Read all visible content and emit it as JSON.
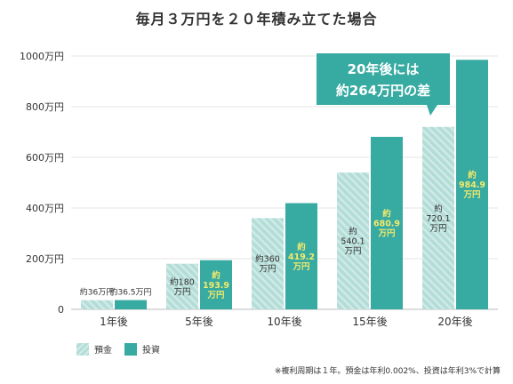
{
  "title": "毎月３万円を２０年積み立てた場合",
  "callout": {
    "line1": "20年後には",
    "line2": "約264万円の差"
  },
  "legend": {
    "savings": "預金",
    "investment": "投資"
  },
  "footnote": "※複利周期は１年。預金は年利0.002%、投資は年利3%で計算",
  "colors": {
    "savings": "#b3ddd7",
    "investment": "#37aaa2",
    "investment_label": "#f5ea6a",
    "text": "#333333",
    "grid": "#e6e6e6",
    "callout": "#37aaa2"
  },
  "chart_data": {
    "type": "bar",
    "categories": [
      "1年後",
      "5年後",
      "10年後",
      "15年後",
      "20年後"
    ],
    "ylim": [
      0,
      1000
    ],
    "yticks": [
      {
        "value": 0,
        "label": "0"
      },
      {
        "value": 200,
        "label": "200万円"
      },
      {
        "value": 400,
        "label": "400万円"
      },
      {
        "value": 600,
        "label": "600万円"
      },
      {
        "value": 800,
        "label": "800万円"
      },
      {
        "value": 1000,
        "label": "1000万円"
      }
    ],
    "series": [
      {
        "name": "預金",
        "values": [
          36,
          180,
          360,
          540.1,
          720.1
        ],
        "labels": [
          [
            "約36万円"
          ],
          [
            "約180",
            "万円"
          ],
          [
            "約360",
            "万円"
          ],
          [
            "約",
            "540.1",
            "万円"
          ],
          [
            "約",
            "720.1",
            "万円"
          ]
        ]
      },
      {
        "name": "投資",
        "values": [
          36.5,
          193.9,
          419.2,
          680.9,
          984.9
        ],
        "labels": [
          [
            "約36.5万円"
          ],
          [
            "約",
            "193.9",
            "万円"
          ],
          [
            "約",
            "419.2",
            "万円"
          ],
          [
            "約",
            "680.9",
            "万円"
          ],
          [
            "約",
            "984.9",
            "万円"
          ]
        ]
      }
    ]
  }
}
